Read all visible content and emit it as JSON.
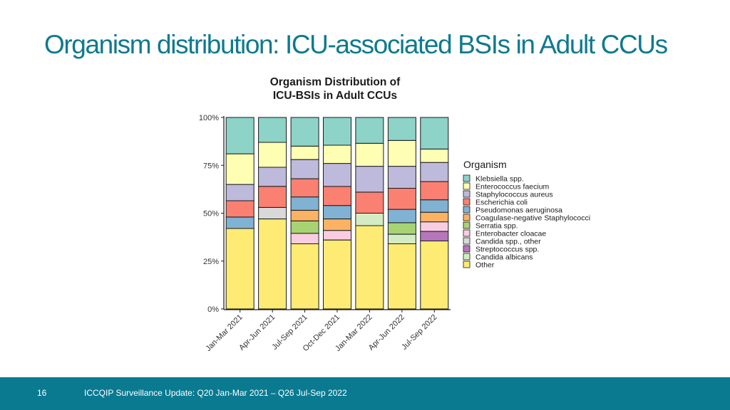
{
  "slide": {
    "title": "Organism distribution: ICU-associated BSIs in Adult CCUs"
  },
  "footer": {
    "page_number": "16",
    "text": "ICCQIP Surveillance Update: Q20 Jan-Mar 2021 – Q26 Jul-Sep 2022"
  },
  "chart_data": {
    "type": "bar",
    "stacked": true,
    "title_lines": [
      "Organism Distribution of",
      "ICU-BSIs in Adult CCUs"
    ],
    "xlabel": "",
    "ylabel": "",
    "ylim": [
      0,
      100
    ],
    "y_ticks": [
      {
        "value": 0,
        "label": "0%"
      },
      {
        "value": 25,
        "label": "25%"
      },
      {
        "value": 50,
        "label": "50%"
      },
      {
        "value": 75,
        "label": "75%"
      },
      {
        "value": 100,
        "label": "100%"
      }
    ],
    "grid": false,
    "legend_title": "Organism",
    "legend_position": "right",
    "categories": [
      "Jan-Mar 2021",
      "Apr-Jun 2021",
      "Jul-Sep 2021",
      "Oct-Dec 2021",
      "Jan-Mar 2022",
      "Apr-Jun 2022",
      "Jul-Sep 2022"
    ],
    "series": [
      {
        "name": "Other",
        "color": "#fdeb73",
        "values": [
          42,
          47,
          34,
          36,
          43.5,
          34,
          35.5
        ]
      },
      {
        "name": "Candida albicans",
        "color": "#d4ecc4",
        "values": [
          0,
          0,
          0,
          0,
          6.5,
          5,
          0
        ]
      },
      {
        "name": "Streptococcus spp.",
        "color": "#b576ba",
        "values": [
          0,
          0,
          0,
          0,
          0,
          0,
          5
        ]
      },
      {
        "name": "Candida spp., other",
        "color": "#d9d9d9",
        "values": [
          0,
          6,
          0,
          0,
          0,
          0,
          0
        ]
      },
      {
        "name": "Enterobacter cloacae",
        "color": "#f9cde1",
        "values": [
          0,
          0,
          5.5,
          5,
          0,
          0,
          5
        ]
      },
      {
        "name": "Serratia spp.",
        "color": "#a8d373",
        "values": [
          0,
          0,
          6.5,
          0,
          0,
          6,
          0
        ]
      },
      {
        "name": "Coagulase-negative Staphylococci",
        "color": "#fbb363",
        "values": [
          0,
          0,
          5.5,
          6,
          0,
          0,
          5
        ]
      },
      {
        "name": "Pseudomonas aeruginosa",
        "color": "#80b2d4",
        "values": [
          6,
          0,
          7,
          7,
          0,
          7,
          6.5
        ]
      },
      {
        "name": "Escherichia coli",
        "color": "#fa8072",
        "values": [
          8.5,
          11,
          9.5,
          10,
          11,
          11,
          9.5
        ]
      },
      {
        "name": "Staphylococcus aureus",
        "color": "#bdbadb",
        "values": [
          8.5,
          10,
          10,
          12,
          13.5,
          11.5,
          10
        ]
      },
      {
        "name": "Enterococcus faecium",
        "color": "#ffffb3",
        "values": [
          16,
          13,
          7,
          9.5,
          12,
          13.5,
          7
        ]
      },
      {
        "name": "Klebsiella spp.",
        "color": "#8dd3c7",
        "values": [
          19,
          13,
          15,
          14.5,
          13.5,
          12,
          16.5
        ]
      }
    ],
    "legend_order": [
      "Klebsiella spp.",
      "Enterococcus faecium",
      "Staphylococcus aureus",
      "Escherichia coli",
      "Pseudomonas aeruginosa",
      "Coagulase-negative Staphylococci",
      "Serratia spp.",
      "Enterobacter cloacae",
      "Candida spp., other",
      "Streptococcus spp.",
      "Candida albicans",
      "Other"
    ]
  }
}
